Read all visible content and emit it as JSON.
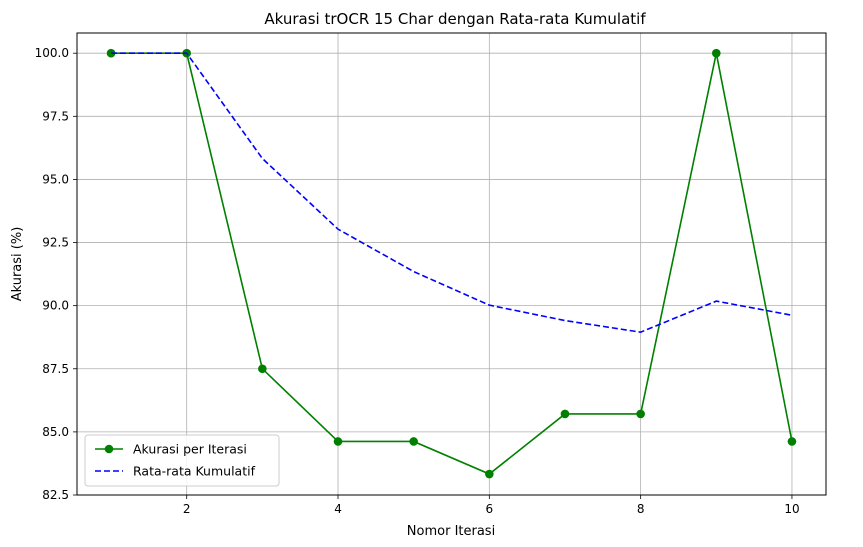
{
  "chart_data": {
    "type": "line",
    "title": "Akurasi trOCR 15 Char dengan Rata-rata Kumulatif",
    "xlabel": "Nomor Iterasi",
    "ylabel": "Akurasi (%)",
    "x": [
      1,
      2,
      3,
      4,
      5,
      6,
      7,
      8,
      9,
      10
    ],
    "xlim": [
      0.55,
      10.45
    ],
    "ylim": [
      82.5,
      100.8
    ],
    "xticks": [
      2,
      4,
      6,
      8,
      10
    ],
    "xtick_labels": [
      "2",
      "4",
      "6",
      "8",
      "10"
    ],
    "yticks": [
      82.5,
      85.0,
      87.5,
      90.0,
      92.5,
      95.0,
      97.5,
      100.0
    ],
    "ytick_labels": [
      "82.5",
      "85.0",
      "87.5",
      "90.0",
      "92.5",
      "95.0",
      "97.5",
      "100.0"
    ],
    "grid": true,
    "legend_position": "bottom-left",
    "series": [
      {
        "name": "Akurasi per Iterasi",
        "color": "#008000",
        "style": "solid",
        "marker": "circle",
        "values": [
          100.0,
          100.0,
          87.5,
          84.62,
          84.62,
          83.33,
          85.71,
          85.71,
          100.0,
          84.62
        ]
      },
      {
        "name": "Rata-rata Kumulatif",
        "color": "#0000ff",
        "style": "dashed",
        "marker": "none",
        "values": [
          100.0,
          100.0,
          95.83,
          93.03,
          91.35,
          90.02,
          89.41,
          88.95,
          90.18,
          89.62
        ]
      }
    ]
  }
}
